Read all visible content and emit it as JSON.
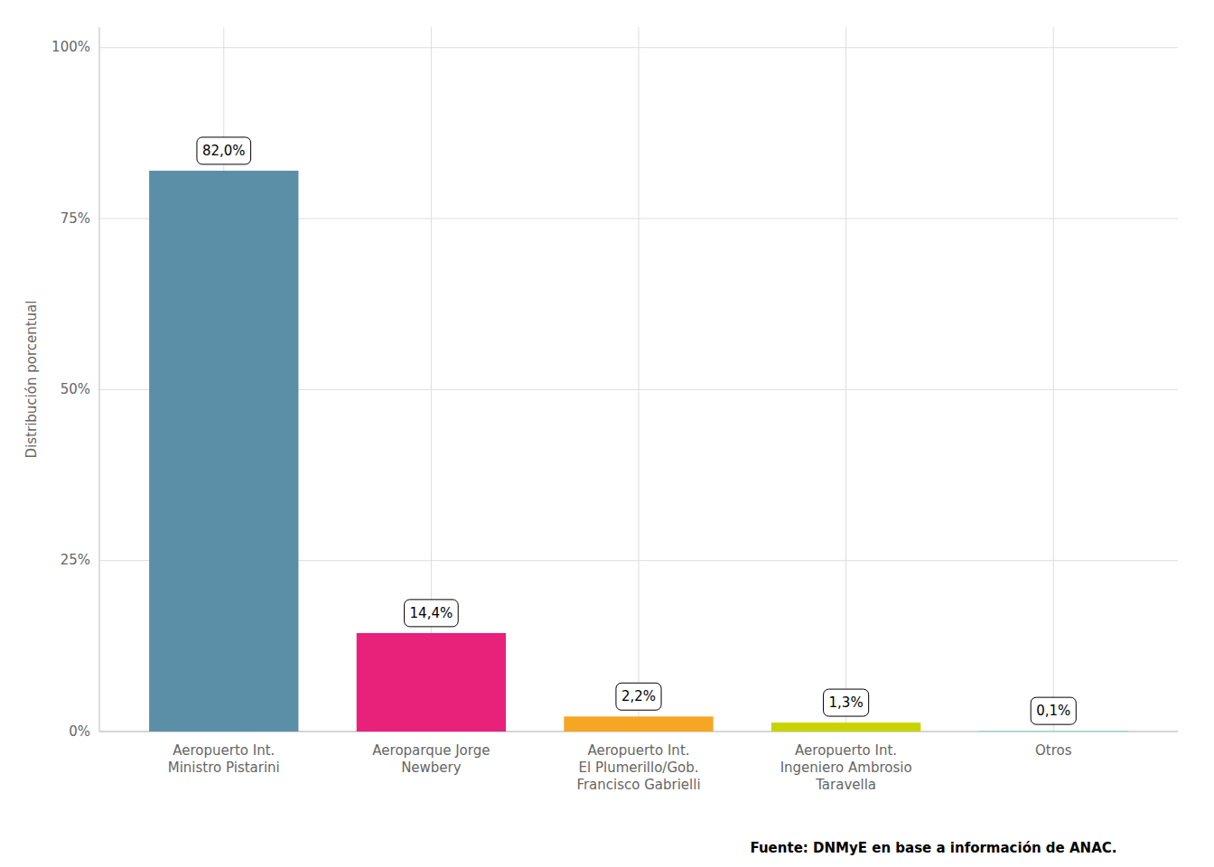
{
  "chart_data": {
    "type": "bar",
    "categories": [
      "Aeropuerto Int.\nMinistro Pistarini",
      "Aeroparque Jorge\nNewbery",
      "Aeropuerto Int.\nEl Plumerillo/Gob.\nFrancisco Gabrielli",
      "Aeropuerto Int.\nIngeniero Ambrosio\nTaravella",
      "Otros"
    ],
    "values": [
      82.0,
      14.4,
      2.2,
      1.3,
      0.1
    ],
    "value_labels": [
      "82,0%",
      "14,4%",
      "2,2%",
      "1,3%",
      "0,1%"
    ],
    "colors": [
      "#5b8fa8",
      "#e8217a",
      "#f5a623",
      "#c8d400",
      "#7dd8d8"
    ],
    "ylabel": "Distribución porcentual",
    "ylim": [
      0,
      103
    ],
    "yticks": [
      {
        "value": 0,
        "label": "0%"
      },
      {
        "value": 25,
        "label": "25%"
      },
      {
        "value": 50,
        "label": "50%"
      },
      {
        "value": 75,
        "label": "75%"
      },
      {
        "value": 100,
        "label": "100%"
      }
    ],
    "grid": true,
    "data_labels": true,
    "annotations": [
      "Fuente: DNMyE en base a información de ANAC."
    ]
  }
}
